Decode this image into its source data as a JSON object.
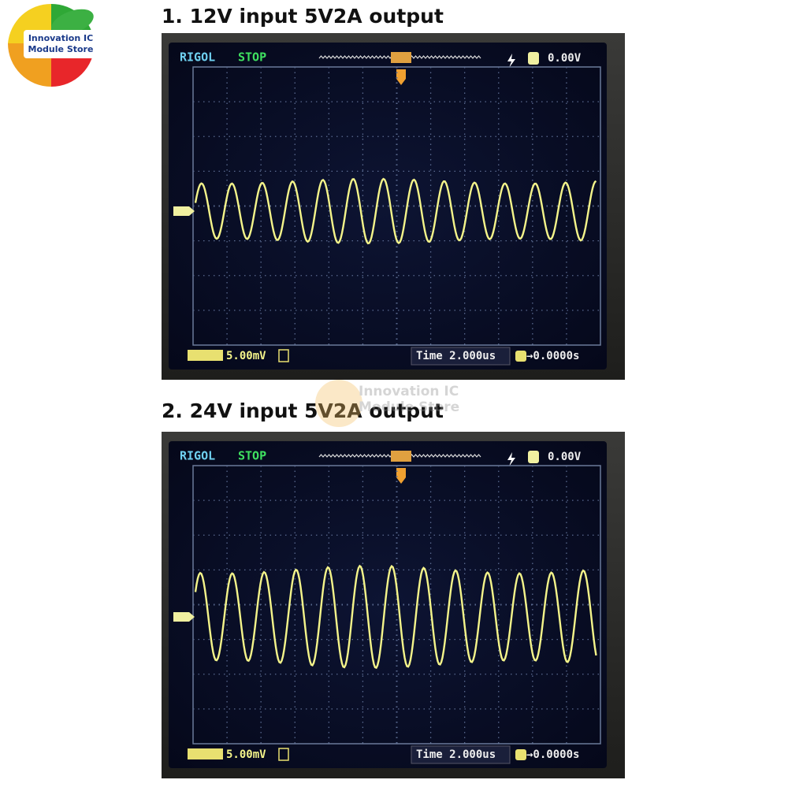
{
  "logo": {
    "line1": "Innovation IC",
    "line2": "Module Store"
  },
  "watermark": {
    "line1": "Innovation IC",
    "line2": "Module Store"
  },
  "panels": [
    {
      "title": "1. 12V input 5V2A output",
      "scope": {
        "brand": "RIGOL",
        "status": "STOP",
        "trigger_level": "0.00V",
        "channel_scale": "5.00mV",
        "timebase": "Time 2.000us",
        "offset": "→0.0000s"
      }
    },
    {
      "title": "2. 24V input 5V2A output",
      "scope": {
        "brand": "RIGOL",
        "status": "STOP",
        "trigger_level": "0.00V",
        "channel_scale": "5.00mV",
        "timebase": "Time 2.000us",
        "offset": "→0.0000s"
      }
    }
  ]
}
